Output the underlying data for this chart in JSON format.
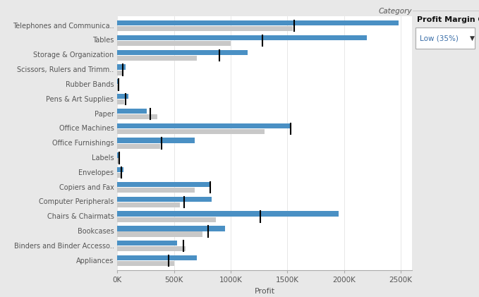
{
  "categories": [
    "Telephones and Communica..",
    "Tables",
    "Storage & Organization",
    "Scissors, Rulers and Trimm..",
    "Rubber Bands",
    "Pens & Art Supplies",
    "Paper",
    "Office Machines",
    "Office Furnishings",
    "Labels",
    "Envelopes",
    "Copiers and Fax",
    "Computer Peripherals",
    "Chairs & Chairmats",
    "Bookcases",
    "Binders and Binder Accesso..",
    "Appliances"
  ],
  "blue_values": [
    2480000,
    2200000,
    1150000,
    75000,
    8000,
    95000,
    260000,
    1530000,
    680000,
    12000,
    55000,
    820000,
    830000,
    1950000,
    950000,
    530000,
    700000
  ],
  "gray_values": [
    1550000,
    1000000,
    700000,
    40000,
    10000,
    60000,
    350000,
    1300000,
    380000,
    20000,
    30000,
    680000,
    550000,
    870000,
    750000,
    600000,
    500000
  ],
  "reference_lines": [
    1560000,
    1280000,
    900000,
    45000,
    10000,
    70000,
    290000,
    1530000,
    390000,
    15000,
    38000,
    820000,
    590000,
    1260000,
    800000,
    580000,
    450000
  ],
  "blue_color": "#4a90c4",
  "gray_color": "#c8c8c8",
  "ref_line_color": "#000000",
  "bg_color": "#e8e8e8",
  "plot_bg": "#ffffff",
  "axis_label_color": "#555555",
  "title_text": "Profit Margin Goals",
  "dropdown_text": "Low (35%)",
  "xlabel": "Profit",
  "category_label": "Category",
  "xlim": [
    0,
    2600000
  ],
  "xtick_vals": [
    0,
    500000,
    1000000,
    1500000,
    2000000,
    2500000
  ],
  "xtick_labels": [
    "0K",
    "500K",
    "1000K",
    "1500K",
    "2000K",
    "2500K"
  ]
}
